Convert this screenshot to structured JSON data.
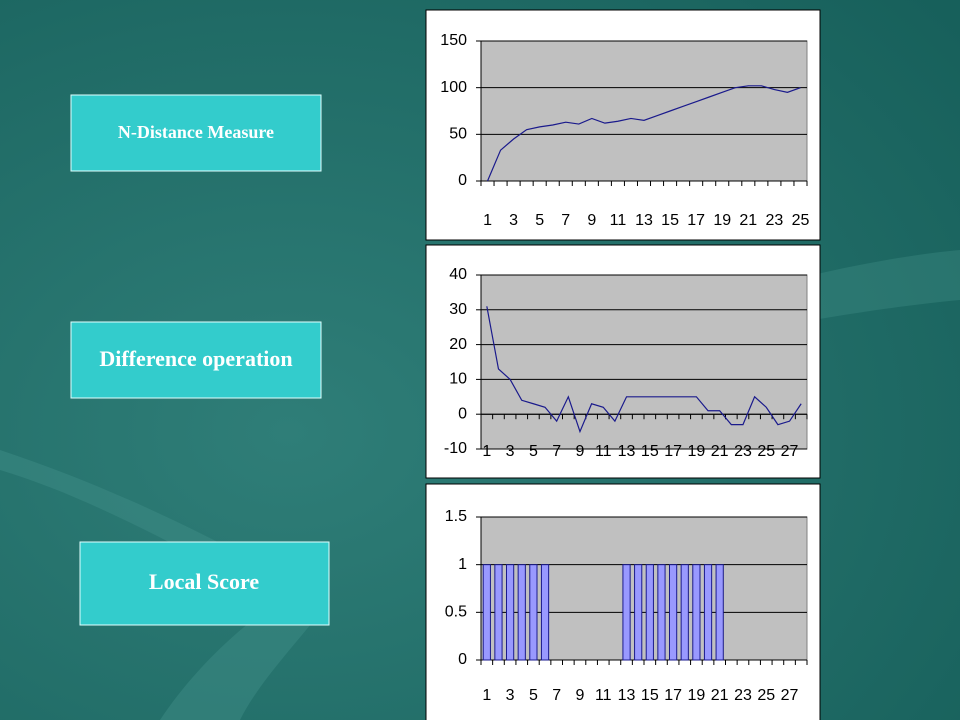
{
  "chart_data": [
    {
      "type": "line",
      "title": "N-Distance Measure",
      "categories": [
        1,
        null,
        3,
        null,
        5,
        null,
        7,
        null,
        9,
        null,
        11,
        null,
        13,
        null,
        15,
        null,
        17,
        null,
        19,
        null,
        21,
        null,
        23,
        null,
        25
      ],
      "values": [
        0,
        33,
        45,
        55,
        58,
        60,
        63,
        61,
        67,
        62,
        64,
        67,
        65,
        70,
        75,
        80,
        85,
        90,
        95,
        100,
        102,
        102,
        98,
        95,
        100
      ],
      "color": "#1a1a8c",
      "ylim": [
        0,
        150
      ],
      "yticks": [
        0,
        50,
        100,
        150
      ],
      "grid": true
    },
    {
      "type": "line",
      "title": "Difference operation",
      "categories": [
        1,
        null,
        3,
        null,
        5,
        null,
        7,
        null,
        9,
        null,
        11,
        null,
        13,
        null,
        15,
        null,
        17,
        null,
        19,
        null,
        21,
        null,
        23,
        null,
        25,
        null,
        27,
        null
      ],
      "values": [
        31,
        13,
        10,
        4,
        3,
        2,
        -2,
        5,
        -5,
        3,
        2,
        -2,
        5,
        5,
        5,
        5,
        5,
        5,
        5,
        1,
        1,
        -3,
        -3,
        5,
        2,
        -3,
        -2,
        3
      ],
      "color": "#1a1a8c",
      "ylim": [
        -10,
        40
      ],
      "yticks": [
        -10,
        0,
        10,
        20,
        30,
        40
      ],
      "grid": true
    },
    {
      "type": "bar",
      "title": "Local Score",
      "categories": [
        1,
        null,
        3,
        null,
        5,
        null,
        7,
        null,
        9,
        null,
        11,
        null,
        13,
        null,
        15,
        null,
        17,
        null,
        19,
        null,
        21,
        null,
        23,
        null,
        25,
        null,
        27,
        null
      ],
      "values": [
        1,
        1,
        1,
        1,
        1,
        1,
        0,
        0,
        0,
        0,
        0,
        0,
        1,
        1,
        1,
        1,
        1,
        1,
        1,
        1,
        1,
        0,
        0,
        0,
        0,
        0,
        0,
        0
      ],
      "color": "#9999ff",
      "ylim": [
        0,
        1.5
      ],
      "yticks": [
        0,
        0.5,
        1,
        1.5
      ],
      "grid": true
    }
  ]
}
